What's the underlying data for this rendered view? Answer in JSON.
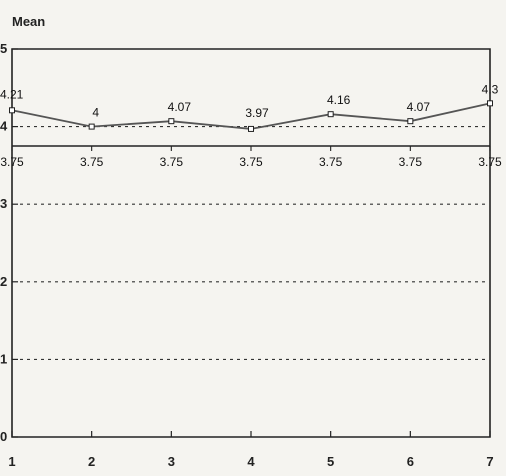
{
  "chart_data": {
    "type": "line",
    "title": "",
    "xlabel": "",
    "ylabel": "Mean",
    "x": [
      1,
      2,
      3,
      4,
      5,
      6,
      7
    ],
    "x_tick_labels": [
      "1",
      "2",
      "3",
      "4",
      "5",
      "6",
      "7"
    ],
    "y_tick_labels": [
      "0",
      "1",
      "2",
      "3",
      "4",
      "5"
    ],
    "ylim": [
      0,
      5
    ],
    "xlim": [
      1,
      7
    ],
    "grid": "horizontal dashed",
    "series": [
      {
        "values": [
          4.21,
          4,
          4.07,
          3.97,
          4.16,
          4.07,
          4.3
        ],
        "labels": [
          "4.21",
          "4",
          "4.07",
          "3.97",
          "4.16",
          "4.07",
          "4.3"
        ]
      }
    ],
    "reference_line": {
      "value": 3.75,
      "labels": [
        "3.75",
        "3.75",
        "3.75",
        "3.75",
        "3.75",
        "3.75",
        "3.75"
      ]
    },
    "line_color": "#555555"
  }
}
